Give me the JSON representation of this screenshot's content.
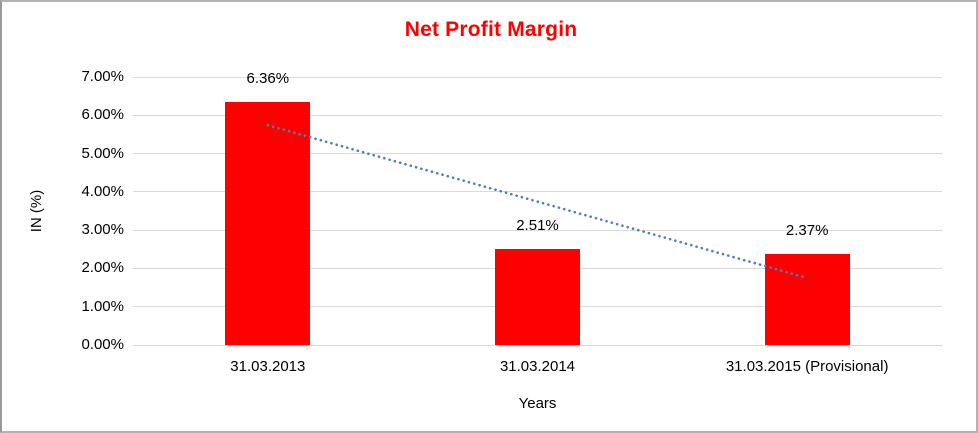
{
  "frame": {
    "background": "#ffffff",
    "border_color": "#b3b3b3"
  },
  "chart_data": {
    "type": "bar",
    "title": "Net Profit Margin",
    "title_color": "#ff0000",
    "categories": [
      "31.03.2013",
      "31.03.2014",
      "31.03.2015 (Provisional)"
    ],
    "values": [
      6.36,
      2.51,
      2.37
    ],
    "data_labels": [
      "6.36%",
      "2.51%",
      "2.37%"
    ],
    "xlabel": "Years",
    "ylabel": "IN (%)",
    "ylim": [
      0,
      7
    ],
    "ytick_step": 1,
    "ytick_labels": [
      "0.00%",
      "1.00%",
      "2.00%",
      "3.00%",
      "4.00%",
      "5.00%",
      "6.00%",
      "7.00%"
    ],
    "bar_color": "#ff0000",
    "text_color": "#000000",
    "gridline_color": "#d9d9d9",
    "grid": true,
    "legend": "none",
    "trendline": {
      "type": "linear",
      "style": "dotted",
      "color": "#4a7ebc",
      "start_value": 5.74,
      "end_value": 1.75
    }
  }
}
